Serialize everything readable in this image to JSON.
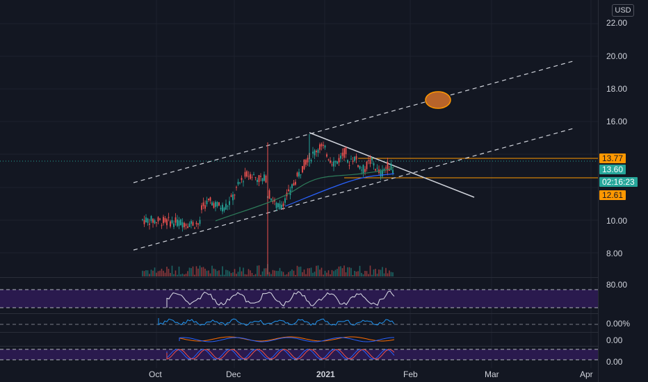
{
  "price_axis": {
    "currency": "USD",
    "ticks": [
      "22.00",
      "20.00",
      "18.00",
      "16.00",
      "10.00",
      "8.00"
    ]
  },
  "price_tags": {
    "resistance": "13.77",
    "last_price": "13.60",
    "countdown": "02:16:23",
    "support": "12.61"
  },
  "indicator_axis": {
    "rsi_upper": "80.00",
    "pane2_label": "0.00%",
    "pane3_label": "0.00",
    "pane4_label": "0.00"
  },
  "time_axis": {
    "labels": [
      "Oct",
      "Dec",
      "2021",
      "Feb",
      "Mar",
      "Apr"
    ]
  },
  "colors": {
    "background": "#131722",
    "candle_up": "#26a69a",
    "candle_down": "#ef5350",
    "level_line": "#ff9800",
    "last_price_bg": "#26a69a",
    "channel": "#d1d4dc",
    "rsi_fill": "#2a1a4e"
  }
}
